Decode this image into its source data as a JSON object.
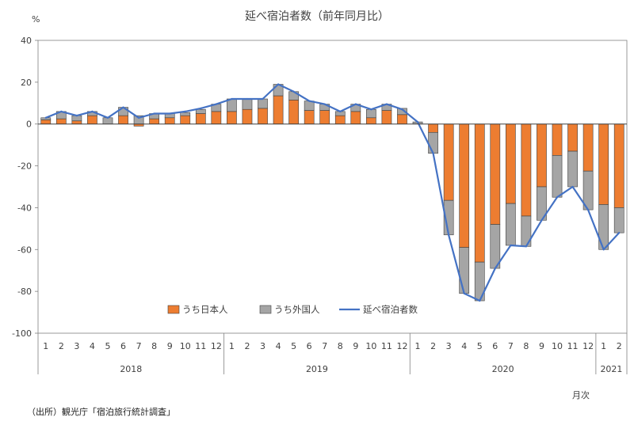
{
  "chart_data": {
    "type": "bar",
    "title": "延べ宿泊者数（前年同月比）",
    "ylabel": "%",
    "xlabel": "月次",
    "ylim": [
      -100,
      40
    ],
    "yticks": [
      40,
      20,
      0,
      -20,
      -40,
      -60,
      -80,
      -100
    ],
    "grid": false,
    "legend_position": "bottom-center",
    "months": [
      "1",
      "2",
      "3",
      "4",
      "5",
      "6",
      "7",
      "8",
      "9",
      "10",
      "11",
      "12",
      "1",
      "2",
      "3",
      "4",
      "5",
      "6",
      "7",
      "8",
      "9",
      "10",
      "11",
      "12",
      "1",
      "2",
      "3",
      "4",
      "5",
      "6",
      "7",
      "8",
      "9",
      "10",
      "11",
      "12",
      "1",
      "2"
    ],
    "years": [
      {
        "label": "2018",
        "count": 12
      },
      {
        "label": "2019",
        "count": 12
      },
      {
        "label": "2020",
        "count": 12
      },
      {
        "label": "2021",
        "count": 2
      }
    ],
    "series": [
      {
        "name": "うち日本人",
        "kind": "bar",
        "color": "#ED7D31",
        "values": [
          2,
          2.5,
          1.5,
          4,
          0,
          4,
          -1,
          2.5,
          3,
          4,
          5,
          6,
          6,
          7,
          7.5,
          13.5,
          11.5,
          6.5,
          6.5,
          4,
          6,
          3,
          6.5,
          4.5,
          0,
          -4,
          -36.5,
          -59,
          -66,
          -48,
          -38,
          -44,
          -30,
          -15,
          -13,
          -22.5,
          -38.5,
          -40
        ]
      },
      {
        "name": "うち外国人",
        "kind": "bar",
        "color": "#A5A5A5",
        "values": [
          1,
          3.5,
          2.5,
          2,
          3,
          4,
          4,
          2.5,
          2,
          1.5,
          2,
          3.5,
          6,
          5,
          4.5,
          5.5,
          4,
          4.5,
          3,
          2,
          3.5,
          4,
          3,
          3,
          1,
          -10,
          -16.5,
          -22,
          -18.5,
          -21,
          -20,
          -14.5,
          -16,
          -20,
          -17,
          -18.5,
          -21.5,
          -12
        ]
      },
      {
        "name": "延べ宿泊者数",
        "kind": "line",
        "color": "#4472C4",
        "values": [
          3,
          6,
          4,
          6,
          3,
          8,
          3,
          5,
          5,
          6,
          7.5,
          9.5,
          12,
          12,
          12,
          19,
          15.5,
          11,
          9.5,
          6,
          9.5,
          7,
          9.5,
          7,
          1,
          -14,
          -53,
          -81,
          -84.5,
          -69,
          -58,
          -58.5,
          -46,
          -35,
          -30,
          -41,
          -60,
          -52
        ]
      }
    ]
  },
  "source_note": "（出所）観光庁「宿泊旅行統計調査」",
  "y_unit_label": "%",
  "x_unit_label": "月次"
}
